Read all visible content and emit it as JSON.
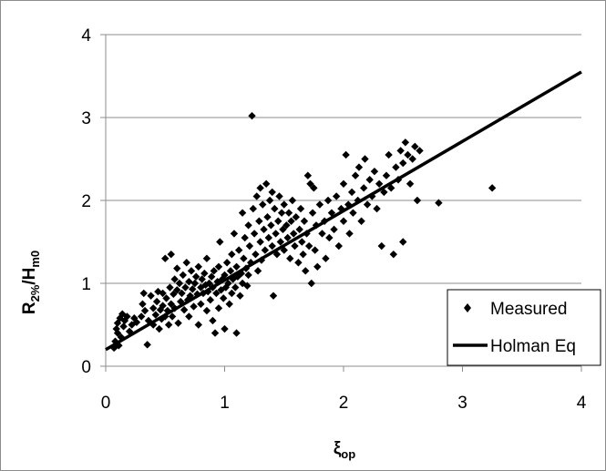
{
  "chart_data": {
    "type": "scatter",
    "xlim": [
      0,
      4
    ],
    "ylim": [
      0,
      4
    ],
    "x_ticks": [
      "0",
      "1",
      "2",
      "3",
      "4"
    ],
    "y_ticks": [
      "0",
      "1",
      "2",
      "3",
      "4"
    ],
    "xlabel": {
      "main": "ξ",
      "sub": "op"
    },
    "ylabel": {
      "main": "R",
      "sub1": "2%",
      "mid": "/H",
      "sub2": "m0"
    },
    "grid": "horizontal",
    "legend_position": "bottom-right",
    "colors": {
      "points": "#000000",
      "line": "#000000",
      "grid": "#8c8c8c"
    },
    "series": [
      {
        "name": "Measured",
        "kind": "scatter",
        "marker": "diamond",
        "points": [
          [
            0.07,
            0.22
          ],
          [
            0.08,
            0.3
          ],
          [
            0.09,
            0.45
          ],
          [
            0.1,
            0.52
          ],
          [
            0.1,
            0.4
          ],
          [
            0.11,
            0.25
          ],
          [
            0.12,
            0.58
          ],
          [
            0.13,
            0.35
          ],
          [
            0.14,
            0.63
          ],
          [
            0.15,
            0.48
          ],
          [
            0.16,
            0.55
          ],
          [
            0.18,
            0.6
          ],
          [
            0.2,
            0.42
          ],
          [
            0.22,
            0.5
          ],
          [
            0.24,
            0.58
          ],
          [
            0.26,
            0.53
          ],
          [
            0.3,
            0.6
          ],
          [
            0.31,
            0.75
          ],
          [
            0.32,
            0.88
          ],
          [
            0.33,
            0.67
          ],
          [
            0.35,
            0.26
          ],
          [
            0.36,
            0.55
          ],
          [
            0.38,
            0.85
          ],
          [
            0.4,
            0.7
          ],
          [
            0.4,
            0.5
          ],
          [
            0.42,
            0.62
          ],
          [
            0.43,
            0.78
          ],
          [
            0.44,
            0.9
          ],
          [
            0.45,
            0.45
          ],
          [
            0.46,
            0.68
          ],
          [
            0.47,
            0.57
          ],
          [
            0.48,
            0.73
          ],
          [
            0.48,
            0.88
          ],
          [
            0.5,
            0.6
          ],
          [
            0.5,
            1.3
          ],
          [
            0.51,
            0.82
          ],
          [
            0.52,
            0.67
          ],
          [
            0.53,
            0.5
          ],
          [
            0.54,
            0.95
          ],
          [
            0.55,
            0.75
          ],
          [
            0.55,
            1.35
          ],
          [
            0.56,
            0.6
          ],
          [
            0.57,
            0.87
          ],
          [
            0.58,
            1.05
          ],
          [
            0.58,
            0.7
          ],
          [
            0.6,
            0.92
          ],
          [
            0.6,
            1.18
          ],
          [
            0.61,
            0.52
          ],
          [
            0.62,
            1.0
          ],
          [
            0.63,
            0.78
          ],
          [
            0.64,
            0.88
          ],
          [
            0.65,
            1.1
          ],
          [
            0.66,
            0.68
          ],
          [
            0.67,
            0.95
          ],
          [
            0.68,
            1.25
          ],
          [
            0.69,
            0.8
          ],
          [
            0.7,
            1.02
          ],
          [
            0.7,
            0.6
          ],
          [
            0.71,
            0.85
          ],
          [
            0.72,
            1.15
          ],
          [
            0.73,
            0.93
          ],
          [
            0.74,
            0.72
          ],
          [
            0.75,
            1.0
          ],
          [
            0.76,
            1.08
          ],
          [
            0.77,
            0.87
          ],
          [
            0.78,
            0.5
          ],
          [
            0.78,
            1.2
          ],
          [
            0.8,
            0.95
          ],
          [
            0.8,
            0.75
          ],
          [
            0.81,
            1.05
          ],
          [
            0.82,
            0.88
          ],
          [
            0.83,
            1.12
          ],
          [
            0.84,
            0.98
          ],
          [
            0.85,
            0.67
          ],
          [
            0.85,
            1.3
          ],
          [
            0.86,
            0.9
          ],
          [
            0.87,
            1.0
          ],
          [
            0.88,
            0.8
          ],
          [
            0.89,
            1.08
          ],
          [
            0.9,
            0.55
          ],
          [
            0.9,
            0.95
          ],
          [
            0.91,
            1.15
          ],
          [
            0.92,
            0.4
          ],
          [
            0.93,
            0.88
          ],
          [
            0.94,
            1.02
          ],
          [
            0.95,
            0.7
          ],
          [
            0.95,
            1.2
          ],
          [
            0.96,
            1.5
          ],
          [
            0.97,
            0.92
          ],
          [
            0.98,
            1.05
          ],
          [
            0.99,
            0.82
          ],
          [
            1.0,
            1.1
          ],
          [
            1.0,
            0.45
          ],
          [
            1.01,
            0.95
          ],
          [
            1.02,
            1.25
          ],
          [
            1.03,
            1.0
          ],
          [
            1.04,
            0.75
          ],
          [
            1.05,
            1.15
          ],
          [
            1.06,
            1.35
          ],
          [
            1.06,
            0.88
          ],
          [
            1.07,
            1.05
          ],
          [
            1.08,
            1.6
          ],
          [
            1.09,
            0.95
          ],
          [
            1.1,
            1.2
          ],
          [
            1.1,
            0.4
          ],
          [
            1.11,
            1.08
          ],
          [
            1.12,
            1.4
          ],
          [
            1.13,
            0.85
          ],
          [
            1.14,
            1.12
          ],
          [
            1.15,
            1.85
          ],
          [
            1.15,
            1.0
          ],
          [
            1.16,
            1.3
          ],
          [
            1.17,
            1.55
          ],
          [
            1.18,
            1.18
          ],
          [
            1.19,
            0.97
          ],
          [
            1.2,
            1.7
          ],
          [
            1.2,
            1.1
          ],
          [
            1.21,
            1.45
          ],
          [
            1.22,
            1.25
          ],
          [
            1.23,
            3.02
          ],
          [
            1.24,
            1.9
          ],
          [
            1.25,
            1.6
          ],
          [
            1.26,
            1.35
          ],
          [
            1.27,
            2.05
          ],
          [
            1.28,
            1.15
          ],
          [
            1.29,
            1.75
          ],
          [
            1.3,
            1.5
          ],
          [
            1.3,
            2.15
          ],
          [
            1.31,
            1.28
          ],
          [
            1.32,
            1.95
          ],
          [
            1.33,
            1.65
          ],
          [
            1.34,
            1.4
          ],
          [
            1.35,
            2.2
          ],
          [
            1.36,
            1.8
          ],
          [
            1.37,
            1.55
          ],
          [
            1.38,
            2.0
          ],
          [
            1.39,
            1.7
          ],
          [
            1.4,
            1.45
          ],
          [
            1.4,
            2.1
          ],
          [
            1.41,
            0.85
          ],
          [
            1.42,
            1.9
          ],
          [
            1.43,
            1.6
          ],
          [
            1.44,
            1.35
          ],
          [
            1.45,
            1.75
          ],
          [
            1.46,
            2.05
          ],
          [
            1.47,
            1.5
          ],
          [
            1.48,
            1.85
          ],
          [
            1.49,
            1.65
          ],
          [
            1.5,
            1.4
          ],
          [
            1.5,
            1.95
          ],
          [
            1.52,
            1.7
          ],
          [
            1.53,
            1.55
          ],
          [
            1.54,
            1.85
          ],
          [
            1.55,
            1.3
          ],
          [
            1.56,
            1.75
          ],
          [
            1.57,
            2.0
          ],
          [
            1.58,
            1.6
          ],
          [
            1.59,
            1.45
          ],
          [
            1.6,
            1.8
          ],
          [
            1.62,
            1.25
          ],
          [
            1.63,
            1.65
          ],
          [
            1.64,
            1.9
          ],
          [
            1.65,
            1.5
          ],
          [
            1.66,
            1.35
          ],
          [
            1.67,
            1.75
          ],
          [
            1.68,
            1.15
          ],
          [
            1.69,
            1.6
          ],
          [
            1.7,
            2.3
          ],
          [
            1.71,
            1.45
          ],
          [
            1.72,
            2.2
          ],
          [
            1.73,
            1.0
          ],
          [
            1.74,
            1.85
          ],
          [
            1.75,
            2.15
          ],
          [
            1.76,
            1.4
          ],
          [
            1.77,
            1.7
          ],
          [
            1.78,
            1.2
          ],
          [
            1.8,
            1.95
          ],
          [
            1.82,
            1.6
          ],
          [
            1.84,
            1.75
          ],
          [
            1.85,
            1.3
          ],
          [
            1.87,
            2.0
          ],
          [
            1.88,
            1.55
          ],
          [
            1.9,
            1.85
          ],
          [
            1.92,
            1.65
          ],
          [
            1.94,
            2.05
          ],
          [
            1.96,
            1.45
          ],
          [
            1.98,
            1.9
          ],
          [
            2.0,
            2.2
          ],
          [
            2.0,
            1.75
          ],
          [
            2.02,
            2.55
          ],
          [
            2.04,
            1.95
          ],
          [
            2.05,
            1.6
          ],
          [
            2.07,
            2.1
          ],
          [
            2.08,
            1.85
          ],
          [
            2.1,
            2.3
          ],
          [
            2.12,
            2.0
          ],
          [
            2.13,
            2.4
          ],
          [
            2.15,
            1.75
          ],
          [
            2.17,
            2.15
          ],
          [
            2.18,
            2.5
          ],
          [
            2.2,
            1.95
          ],
          [
            2.22,
            2.25
          ],
          [
            2.24,
            2.05
          ],
          [
            2.26,
            2.35
          ],
          [
            2.28,
            1.9
          ],
          [
            2.3,
            2.2
          ],
          [
            2.32,
            1.45
          ],
          [
            2.34,
            2.1
          ],
          [
            2.36,
            2.3
          ],
          [
            2.38,
            2.55
          ],
          [
            2.4,
            2.15
          ],
          [
            2.42,
            1.35
          ],
          [
            2.44,
            2.4
          ],
          [
            2.46,
            2.25
          ],
          [
            2.48,
            2.6
          ],
          [
            2.5,
            2.45
          ],
          [
            2.5,
            1.5
          ],
          [
            2.52,
            2.7
          ],
          [
            2.54,
            2.55
          ],
          [
            2.56,
            2.2
          ],
          [
            2.58,
            2.5
          ],
          [
            2.6,
            2.65
          ],
          [
            2.62,
            2.0
          ],
          [
            2.64,
            2.6
          ],
          [
            2.8,
            1.97
          ],
          [
            3.25,
            2.15
          ]
        ]
      },
      {
        "name": "Holman Eq",
        "kind": "line",
        "points": [
          [
            0.0,
            0.2
          ],
          [
            4.0,
            3.55
          ]
        ]
      }
    ]
  }
}
